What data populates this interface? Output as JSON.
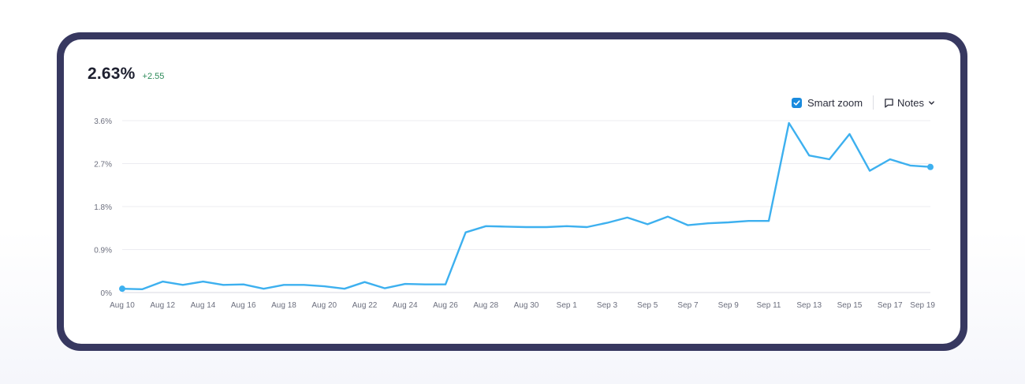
{
  "metric": {
    "value": "2.63%",
    "change": "+2.55"
  },
  "controls": {
    "smart_zoom_label": "Smart zoom",
    "smart_zoom_checked": true,
    "notes_label": "Notes"
  },
  "colors": {
    "line": "#3db0ef",
    "grid": "#ececf1",
    "frame": "#373860",
    "positive": "#2e8b5a"
  },
  "chart_data": {
    "type": "line",
    "ylim": [
      0,
      3.6
    ],
    "y_ticks": [
      0,
      0.9,
      1.8,
      2.7,
      3.6
    ],
    "y_tick_labels": [
      "0%",
      "0.9%",
      "1.8%",
      "2.7%",
      "3.6%"
    ],
    "x_tick_labels": [
      "Aug 10",
      "Aug 12",
      "Aug 14",
      "Aug 16",
      "Aug 18",
      "Aug 20",
      "Aug 22",
      "Aug 24",
      "Aug 26",
      "Aug 28",
      "Aug 30",
      "Sep 1",
      "Sep 3",
      "Sep 5",
      "Sep 7",
      "Sep 9",
      "Sep 11",
      "Sep 13",
      "Sep 15",
      "Sep 17",
      "Sep 19"
    ],
    "grid": true,
    "series": [
      {
        "x": [
          "Aug 10",
          "Aug 11",
          "Aug 12",
          "Aug 13",
          "Aug 14",
          "Aug 15",
          "Aug 16",
          "Aug 17",
          "Aug 18",
          "Aug 19",
          "Aug 20",
          "Aug 21",
          "Aug 22",
          "Aug 23",
          "Aug 24",
          "Aug 25",
          "Aug 26",
          "Aug 27",
          "Aug 28",
          "Aug 29",
          "Aug 30",
          "Aug 31",
          "Sep 1",
          "Sep 2",
          "Sep 3",
          "Sep 4",
          "Sep 5",
          "Sep 6",
          "Sep 7",
          "Sep 8",
          "Sep 9",
          "Sep 10",
          "Sep 11",
          "Sep 12",
          "Sep 13",
          "Sep 14",
          "Sep 15",
          "Sep 16",
          "Sep 17",
          "Sep 18",
          "Sep 19"
        ],
        "values": [
          0.08,
          0.07,
          0.23,
          0.16,
          0.23,
          0.16,
          0.17,
          0.08,
          0.16,
          0.16,
          0.13,
          0.08,
          0.22,
          0.09,
          0.18,
          0.17,
          0.17,
          1.26,
          1.39,
          1.38,
          1.37,
          1.37,
          1.39,
          1.37,
          1.46,
          1.57,
          1.43,
          1.59,
          1.41,
          1.45,
          1.47,
          1.5,
          1.5,
          3.55,
          2.87,
          2.79,
          3.32,
          2.55,
          2.79,
          2.66,
          2.63
        ]
      }
    ]
  }
}
